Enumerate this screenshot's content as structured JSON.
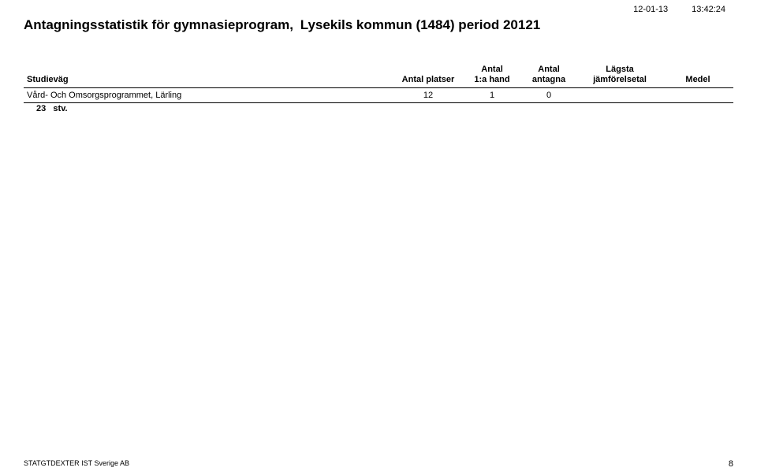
{
  "meta": {
    "date": "12-01-13",
    "time": "13:42:24"
  },
  "title": {
    "part1": "Antagningsstatistik för gymnasieprogram,",
    "part2": "Lysekils kommun (1484) period 20121"
  },
  "table": {
    "headers": {
      "studievag": "Studieväg",
      "platser": "Antal platser",
      "hand_l1": "Antal",
      "hand_l2": "1:a hand",
      "antagna_l1": "Antal",
      "antagna_l2": "antagna",
      "jmf_l1": "Lägsta",
      "jmf_l2": "jämförelsetal",
      "medel": "Medel"
    },
    "row": {
      "studievag": "Vård- Och Omsorgsprogrammet, Lärling",
      "platser": "12",
      "hand": "1",
      "antagna": "0",
      "jmf": "",
      "medel": ""
    }
  },
  "summary": {
    "count": "23",
    "label": "stv."
  },
  "footer": {
    "credit": "STATGTDEXTER  IST Sverige AB",
    "page": "8"
  },
  "style": {
    "background": "#ffffff",
    "text_color": "#000000",
    "title_fontsize": 17,
    "body_fontsize": 11,
    "footer_fontsize": 9,
    "rule_color": "#000000"
  }
}
